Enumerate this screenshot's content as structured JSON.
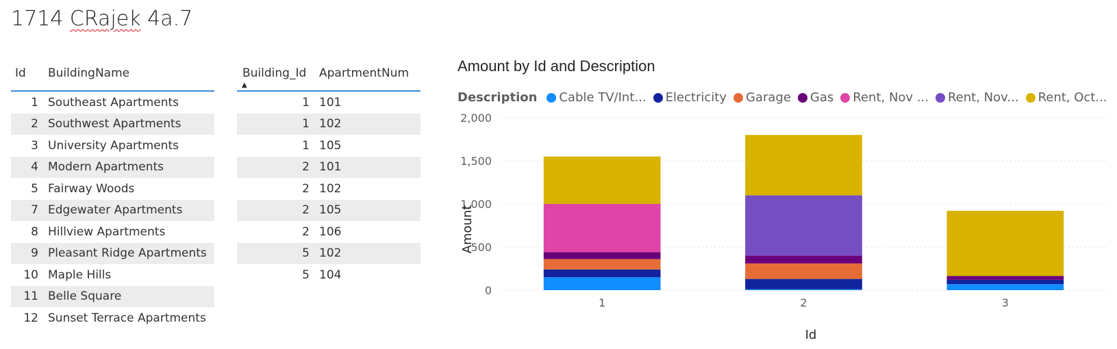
{
  "page": {
    "title_prefix": "1714 ",
    "title_misspelled": "CRajek",
    "title_suffix": " 4a.7"
  },
  "buildings_table": {
    "headers": [
      "Id",
      "BuildingName"
    ],
    "rows": [
      [
        "1",
        "Southeast Apartments"
      ],
      [
        "2",
        "Southwest Apartments"
      ],
      [
        "3",
        "University Apartments"
      ],
      [
        "4",
        "Modern Apartments"
      ],
      [
        "5",
        "Fairway Woods"
      ],
      [
        "7",
        "Edgewater Apartments"
      ],
      [
        "8",
        "Hillview Apartments"
      ],
      [
        "9",
        "Pleasant Ridge Apartments"
      ],
      [
        "10",
        "Maple Hills"
      ],
      [
        "11",
        "Belle Square"
      ],
      [
        "12",
        "Sunset Terrace Apartments"
      ]
    ]
  },
  "apartments_table": {
    "headers": [
      "Building_Id",
      "ApartmentNum"
    ],
    "sort_icon": "sort-ascending-icon",
    "rows": [
      [
        "1",
        "101"
      ],
      [
        "1",
        "102"
      ],
      [
        "1",
        "105"
      ],
      [
        "2",
        "101"
      ],
      [
        "2",
        "102"
      ],
      [
        "2",
        "105"
      ],
      [
        "2",
        "106"
      ],
      [
        "5",
        "102"
      ],
      [
        "5",
        "104"
      ]
    ]
  },
  "chart_data": {
    "type": "bar",
    "stacked": true,
    "title": "Amount by Id and Description",
    "xlabel": "Id",
    "ylabel": "Amount",
    "legend_title": "Description",
    "legend_position": "top-left",
    "grid": true,
    "ylim": [
      0,
      2000
    ],
    "yticks": [
      0,
      500,
      1000,
      1500,
      2000
    ],
    "ytick_labels": [
      "0",
      "500",
      "1,000",
      "1,500",
      "2,000"
    ],
    "categories": [
      "1",
      "2",
      "3"
    ],
    "series": [
      {
        "name": "Cable TV/Int...",
        "color": "#118dff",
        "values": [
          150,
          10,
          70
        ]
      },
      {
        "name": "Electricity",
        "color": "#12239e",
        "values": [
          90,
          120,
          50
        ]
      },
      {
        "name": "Garage",
        "color": "#e66c37",
        "values": [
          120,
          180,
          0
        ]
      },
      {
        "name": "Gas",
        "color": "#6b007b",
        "values": [
          80,
          90,
          45
        ]
      },
      {
        "name": "Rent, Nov ...",
        "color": "#e044a7",
        "values": [
          560,
          0,
          0
        ]
      },
      {
        "name": "Rent, Nov...",
        "color": "#744ec2",
        "values": [
          0,
          700,
          0
        ]
      },
      {
        "name": "Rent, Oct...",
        "color": "#d9b300",
        "values": [
          550,
          700,
          755
        ]
      }
    ]
  }
}
